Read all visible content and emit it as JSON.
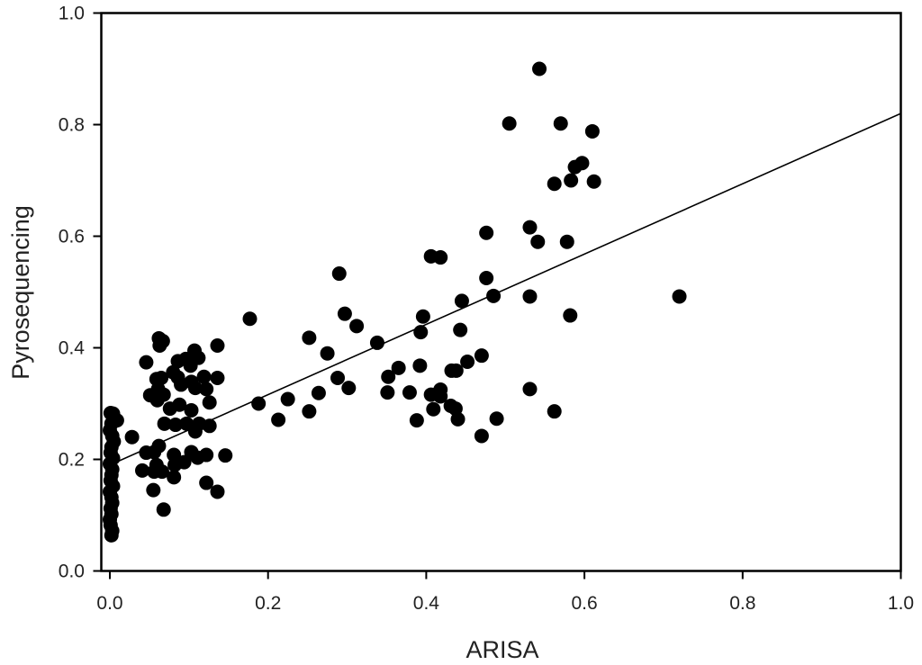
{
  "chart_data": {
    "type": "scatter",
    "xlabel": "ARISA",
    "ylabel": "Pyrosequencing",
    "xlim": [
      0.0,
      1.0
    ],
    "ylim": [
      0.0,
      1.0
    ],
    "xticks": [
      "0.0",
      "0.2",
      "0.4",
      "0.6",
      "0.8",
      "1.0"
    ],
    "yticks": [
      "0.0",
      "0.2",
      "0.4",
      "0.6",
      "0.8",
      "1.0"
    ],
    "grid": false,
    "legend": "none",
    "marker_color": "#000000",
    "fit_line": {
      "x": [
        0.0,
        1.0
      ],
      "y": [
        0.19,
        0.82
      ]
    },
    "points": [
      [
        0.543,
        0.9
      ],
      [
        0.505,
        0.802
      ],
      [
        0.57,
        0.802
      ],
      [
        0.61,
        0.788
      ],
      [
        0.597,
        0.731
      ],
      [
        0.588,
        0.724
      ],
      [
        0.583,
        0.7
      ],
      [
        0.562,
        0.694
      ],
      [
        0.612,
        0.698
      ],
      [
        0.531,
        0.616
      ],
      [
        0.541,
        0.59
      ],
      [
        0.578,
        0.59
      ],
      [
        0.476,
        0.606
      ],
      [
        0.406,
        0.564
      ],
      [
        0.418,
        0.562
      ],
      [
        0.29,
        0.533
      ],
      [
        0.476,
        0.525
      ],
      [
        0.445,
        0.484
      ],
      [
        0.485,
        0.493
      ],
      [
        0.531,
        0.492
      ],
      [
        0.72,
        0.492
      ],
      [
        0.582,
        0.458
      ],
      [
        0.177,
        0.452
      ],
      [
        0.297,
        0.461
      ],
      [
        0.312,
        0.439
      ],
      [
        0.396,
        0.456
      ],
      [
        0.393,
        0.428
      ],
      [
        0.443,
        0.432
      ],
      [
        0.252,
        0.418
      ],
      [
        0.338,
        0.409
      ],
      [
        0.275,
        0.39
      ],
      [
        0.47,
        0.386
      ],
      [
        0.452,
        0.375
      ],
      [
        0.432,
        0.359
      ],
      [
        0.438,
        0.359
      ],
      [
        0.392,
        0.368
      ],
      [
        0.365,
        0.364
      ],
      [
        0.352,
        0.348
      ],
      [
        0.288,
        0.346
      ],
      [
        0.302,
        0.328
      ],
      [
        0.264,
        0.319
      ],
      [
        0.351,
        0.32
      ],
      [
        0.379,
        0.32
      ],
      [
        0.406,
        0.316
      ],
      [
        0.418,
        0.325
      ],
      [
        0.418,
        0.313
      ],
      [
        0.531,
        0.326
      ],
      [
        0.431,
        0.296
      ],
      [
        0.437,
        0.291
      ],
      [
        0.409,
        0.29
      ],
      [
        0.225,
        0.308
      ],
      [
        0.188,
        0.3
      ],
      [
        0.252,
        0.286
      ],
      [
        0.213,
        0.271
      ],
      [
        0.388,
        0.27
      ],
      [
        0.44,
        0.272
      ],
      [
        0.489,
        0.273
      ],
      [
        0.562,
        0.286
      ],
      [
        0.47,
        0.242
      ],
      [
        0.062,
        0.417
      ],
      [
        0.067,
        0.412
      ],
      [
        0.063,
        0.404
      ],
      [
        0.136,
        0.404
      ],
      [
        0.107,
        0.395
      ],
      [
        0.112,
        0.382
      ],
      [
        0.096,
        0.38
      ],
      [
        0.046,
        0.374
      ],
      [
        0.086,
        0.376
      ],
      [
        0.102,
        0.368
      ],
      [
        0.08,
        0.356
      ],
      [
        0.086,
        0.347
      ],
      [
        0.065,
        0.346
      ],
      [
        0.059,
        0.344
      ],
      [
        0.119,
        0.348
      ],
      [
        0.136,
        0.346
      ],
      [
        0.103,
        0.339
      ],
      [
        0.09,
        0.334
      ],
      [
        0.122,
        0.326
      ],
      [
        0.108,
        0.328
      ],
      [
        0.061,
        0.326
      ],
      [
        0.068,
        0.316
      ],
      [
        0.051,
        0.315
      ],
      [
        0.06,
        0.306
      ],
      [
        0.088,
        0.298
      ],
      [
        0.126,
        0.302
      ],
      [
        0.103,
        0.288
      ],
      [
        0.076,
        0.291
      ],
      [
        0.083,
        0.262
      ],
      [
        0.069,
        0.264
      ],
      [
        0.097,
        0.264
      ],
      [
        0.113,
        0.264
      ],
      [
        0.126,
        0.26
      ],
      [
        0.108,
        0.25
      ],
      [
        0.062,
        0.224
      ],
      [
        0.056,
        0.213
      ],
      [
        0.103,
        0.213
      ],
      [
        0.046,
        0.212
      ],
      [
        0.081,
        0.208
      ],
      [
        0.122,
        0.208
      ],
      [
        0.146,
        0.207
      ],
      [
        0.111,
        0.203
      ],
      [
        0.094,
        0.195
      ],
      [
        0.082,
        0.19
      ],
      [
        0.059,
        0.19
      ],
      [
        0.041,
        0.18
      ],
      [
        0.056,
        0.178
      ],
      [
        0.066,
        0.178
      ],
      [
        0.081,
        0.168
      ],
      [
        0.122,
        0.158
      ],
      [
        0.055,
        0.145
      ],
      [
        0.136,
        0.142
      ],
      [
        0.068,
        0.11
      ],
      [
        0.028,
        0.24
      ],
      [
        0.009,
        0.27
      ],
      [
        0.001,
        0.283
      ],
      [
        0.004,
        0.282
      ],
      [
        0.002,
        0.264
      ],
      [
        0.0,
        0.252
      ],
      [
        0.003,
        0.242
      ],
      [
        0.005,
        0.232
      ],
      [
        0.002,
        0.222
      ],
      [
        0.001,
        0.212
      ],
      [
        0.004,
        0.202
      ],
      [
        0.0,
        0.192
      ],
      [
        0.003,
        0.182
      ],
      [
        0.002,
        0.172
      ],
      [
        0.001,
        0.162
      ],
      [
        0.004,
        0.152
      ],
      [
        0.0,
        0.142
      ],
      [
        0.002,
        0.132
      ],
      [
        0.003,
        0.122
      ],
      [
        0.001,
        0.112
      ],
      [
        0.002,
        0.102
      ],
      [
        0.0,
        0.092
      ],
      [
        0.001,
        0.082
      ],
      [
        0.003,
        0.072
      ],
      [
        0.002,
        0.064
      ]
    ]
  }
}
